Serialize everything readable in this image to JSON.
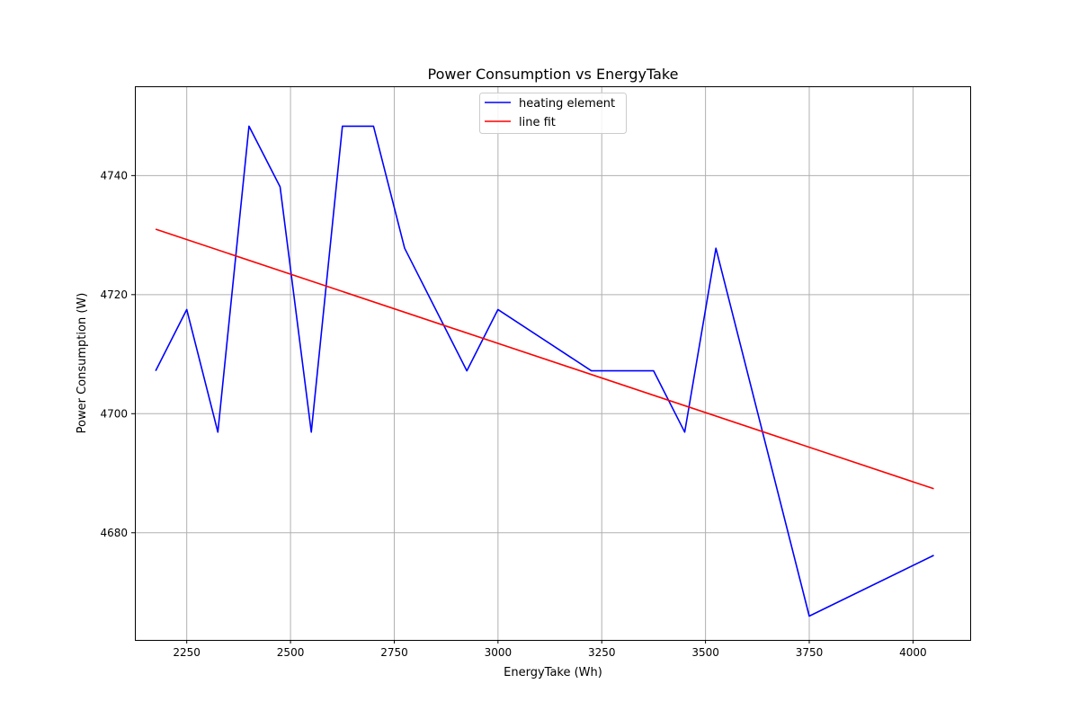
{
  "chart_data": {
    "type": "line",
    "title": "Power Consumption vs EnergyTake",
    "xlabel": "EnergyTake (Wh)",
    "ylabel": "Power Consumption (W)",
    "xlim": [
      2125,
      4140
    ],
    "ylim": [
      4662,
      4755
    ],
    "x_ticks": [
      2250,
      2500,
      2750,
      3000,
      3250,
      3500,
      3750,
      4000
    ],
    "y_ticks": [
      4680,
      4700,
      4720,
      4740
    ],
    "grid": true,
    "legend_position": "upper center",
    "series": [
      {
        "name": "heating element",
        "color": "#0000ff",
        "x": [
          2175,
          2250,
          2325,
          2400,
          2475,
          2550,
          2625,
          2700,
          2775,
          2925,
          3000,
          3225,
          3375,
          3450,
          3525,
          3750,
          4050
        ],
        "y": [
          4707.2,
          4717.5,
          4696.9,
          4748.3,
          4738.1,
          4696.9,
          4748.3,
          4748.3,
          4727.8,
          4707.2,
          4717.5,
          4707.2,
          4707.2,
          4696.9,
          4727.8,
          4666.0,
          4676.2
        ]
      },
      {
        "name": "line fit",
        "color": "#ff0000",
        "x": [
          2175,
          4050
        ],
        "y": [
          4731.0,
          4687.4
        ]
      }
    ]
  }
}
